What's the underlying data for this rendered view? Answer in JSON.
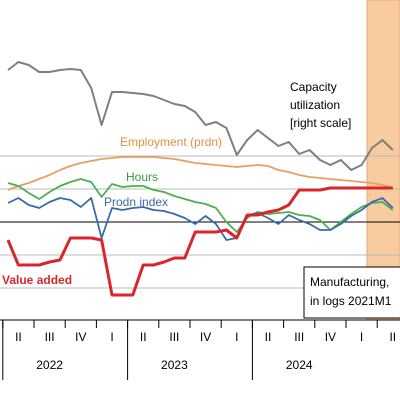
{
  "chart_data": {
    "type": "line",
    "categories": [
      null,
      "II",
      null,
      null,
      "III",
      null,
      null,
      "IV",
      null,
      null,
      "I",
      null,
      null,
      "II",
      null,
      null,
      "III",
      null,
      null,
      "IV",
      null,
      null,
      "I",
      null,
      null,
      "II",
      null,
      null,
      "III",
      null,
      null,
      "IV",
      null,
      null,
      "I",
      null,
      null,
      "II"
    ],
    "years": [
      "2022",
      "2023",
      "2024"
    ],
    "ylim": [
      0,
      320
    ],
    "yticks": [
      32,
      65,
      98,
      131,
      164
    ],
    "grid": true,
    "series": [
      {
        "name": "Capacity utilization",
        "color": "#7f7f7f",
        "values": [
          250,
          258,
          255,
          248,
          248,
          250,
          251,
          250,
          232,
          195,
          228,
          228,
          227,
          226,
          224,
          220,
          216,
          214,
          208,
          195,
          198,
          192,
          165,
          180,
          190,
          182,
          174,
          178,
          166,
          170,
          160,
          155,
          160,
          150,
          155,
          172,
          180,
          170
        ]
      },
      {
        "name": "Employment (prdn)",
        "color": "#e8a060",
        "values": [
          130,
          134,
          137,
          141,
          145,
          150,
          154,
          157,
          159,
          161,
          162,
          163,
          163,
          163,
          163,
          162,
          161,
          159,
          157,
          156,
          155,
          154,
          153,
          154,
          155,
          154,
          150,
          148,
          145,
          143,
          142,
          141,
          140,
          139,
          138,
          137,
          135,
          132
        ]
      },
      {
        "name": "Hours",
        "color": "#4caf50",
        "values": [
          137,
          134,
          127,
          121,
          128,
          134,
          138,
          141,
          138,
          123,
          136,
          133,
          134,
          134,
          130,
          128,
          124,
          121,
          118,
          116,
          112,
          98,
          88,
          102,
          108,
          106,
          107,
          108,
          105,
          104,
          100,
          90,
          98,
          106,
          113,
          117,
          118,
          110
        ]
      },
      {
        "name": "Prodn index",
        "color": "#3a6aa8",
        "values": [
          117,
          122,
          115,
          112,
          118,
          122,
          120,
          113,
          122,
          82,
          112,
          110,
          112,
          113,
          110,
          109,
          106,
          102,
          96,
          104,
          96,
          80,
          82,
          105,
          107,
          102,
          96,
          105,
          100,
          96,
          90,
          90,
          96,
          104,
          110,
          118,
          122,
          112
        ]
      },
      {
        "name": "Value added",
        "color": "#d9262c",
        "values": [
          80,
          55,
          55,
          55,
          58,
          60,
          82,
          82,
          82,
          80,
          25,
          25,
          25,
          55,
          55,
          58,
          62,
          62,
          88,
          88,
          88,
          90,
          82,
          105,
          105,
          108,
          110,
          115,
          130,
          130,
          130,
          132,
          132,
          132,
          132,
          132,
          132,
          132
        ]
      }
    ],
    "labels": {
      "employment": "Employment (prdn)",
      "hours": "Hours",
      "prodn": "Prodn index",
      "capacity": [
        "Capacity",
        "utilization",
        "[right scale]"
      ],
      "value_added": "Value added",
      "note": [
        "Manufacturing,",
        "in logs 2021M1"
      ]
    }
  }
}
